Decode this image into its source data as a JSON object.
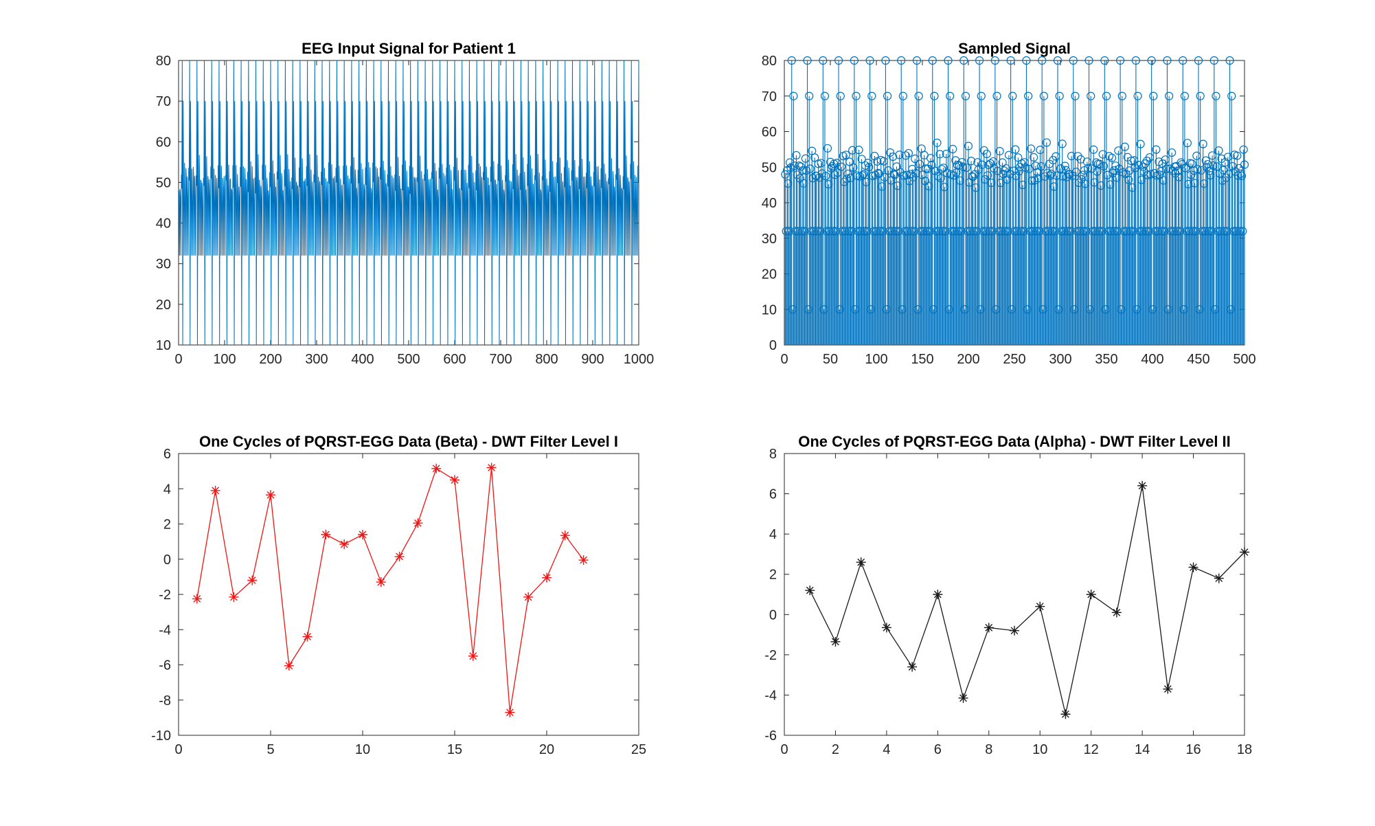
{
  "figure": {
    "background": "#ffffff"
  },
  "colors": {
    "matlab_blue": "#0072BD",
    "series_red": "#f01413",
    "series_black": "#1a1a1a",
    "axis": "#262626",
    "title": "#000000"
  },
  "chart_data": [
    {
      "id": "eeg-input",
      "type": "line",
      "title": "EEG Input Signal for Patient 1",
      "xlabel": "",
      "ylabel": "",
      "xlim": [
        0,
        1000
      ],
      "ylim": [
        10,
        80
      ],
      "xticks": [
        0,
        100,
        200,
        300,
        400,
        500,
        600,
        700,
        800,
        900,
        1000
      ],
      "yticks": [
        10,
        20,
        30,
        40,
        50,
        60,
        70,
        80
      ],
      "grid": false,
      "color": "#0072BD",
      "signal_model": {
        "description": "dense periodic EEG/ECG-like trace: baseline band oscillating 32-57 around 49, with repeating spikes to 80 (clipped at top), down to 10, then 70",
        "n_points": 1000,
        "cycle": [
          49,
          32,
          50,
          46,
          32,
          53,
          49,
          80,
          10,
          70,
          49,
          32,
          55,
          47,
          32,
          52
        ],
        "spike_high": 80,
        "spike_low": 10,
        "spike_mid": 70,
        "band_low": 32,
        "band_high": 57,
        "jitter_amplitude": 2,
        "jitter_applies_between": [
          40,
          60
        ],
        "seed": 42
      }
    },
    {
      "id": "sampled",
      "type": "stem",
      "title": "Sampled Signal",
      "xlabel": "",
      "ylabel": "",
      "xlim": [
        0,
        500
      ],
      "ylim": [
        0,
        80
      ],
      "xticks": [
        0,
        50,
        100,
        150,
        200,
        250,
        300,
        350,
        400,
        450,
        500
      ],
      "yticks": [
        0,
        10,
        20,
        30,
        40,
        50,
        60,
        70,
        80
      ],
      "grid": false,
      "color": "#0072BD",
      "marker": "circle",
      "signal_model": {
        "description": "stem plot of sampled EEG: circle marker rows at 80, 70, cluster 46-57 around 49-55, 32 and 10; stems drawn from 0",
        "n_points": 500,
        "cycle": [
          49,
          32,
          50,
          46,
          32,
          53,
          49,
          80,
          10,
          70,
          49,
          32,
          55,
          47,
          32,
          52,
          48
        ],
        "jitter_amplitude": 2,
        "jitter_applies_between": [
          40,
          60
        ],
        "seed": 11
      }
    },
    {
      "id": "beta-dwt-level1",
      "type": "line",
      "title": "One Cycles of PQRST-EGG Data (Beta) - DWT Filter Level I",
      "xlabel": "",
      "ylabel": "",
      "xlim": [
        0,
        25
      ],
      "ylim": [
        -10,
        6
      ],
      "xticks": [
        0,
        5,
        10,
        15,
        20,
        25
      ],
      "yticks": [
        -10,
        -8,
        -6,
        -4,
        -2,
        0,
        2,
        4,
        6
      ],
      "grid": false,
      "color": "#f01413",
      "marker": "asterisk",
      "x": [
        1,
        2,
        3,
        4,
        5,
        6,
        7,
        8,
        9,
        10,
        11,
        12,
        13,
        14,
        15,
        16,
        17,
        18,
        19,
        20,
        21,
        22
      ],
      "y": [
        -2.25,
        3.9,
        -2.15,
        -1.2,
        3.65,
        -6.05,
        -4.4,
        1.4,
        0.85,
        1.4,
        -1.3,
        0.15,
        2.05,
        5.15,
        4.5,
        -5.5,
        5.2,
        -8.7,
        -2.15,
        -1.05,
        1.35,
        -0.05
      ]
    },
    {
      "id": "alpha-dwt-level2",
      "type": "line",
      "title": "One Cycles of PQRST-EGG Data (Alpha) - DWT Filter Level II",
      "xlabel": "",
      "ylabel": "",
      "xlim": [
        0,
        18
      ],
      "ylim": [
        -6,
        8
      ],
      "xticks": [
        0,
        2,
        4,
        6,
        8,
        10,
        12,
        14,
        16,
        18
      ],
      "yticks": [
        -6,
        -4,
        -2,
        0,
        2,
        4,
        6,
        8
      ],
      "grid": false,
      "color": "#1a1a1a",
      "marker": "asterisk",
      "x": [
        1,
        2,
        3,
        4,
        5,
        6,
        7,
        8,
        9,
        10,
        11,
        12,
        13,
        14,
        15,
        16,
        17,
        18
      ],
      "y": [
        1.2,
        -1.35,
        2.6,
        -0.65,
        -2.6,
        1.0,
        -4.15,
        -0.65,
        -0.8,
        0.4,
        -4.95,
        1.0,
        0.1,
        6.4,
        -3.7,
        2.35,
        1.8,
        3.1
      ]
    }
  ]
}
